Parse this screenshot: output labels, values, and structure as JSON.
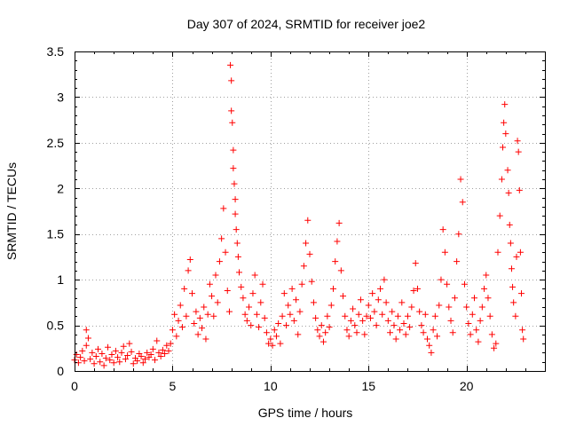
{
  "chart_data": {
    "type": "scatter",
    "title": "Day 307 of 2024, SRMTID for receiver joe2",
    "xlabel": "GPS time / hours",
    "ylabel": "SRMTID / TECUs",
    "xlim": [
      0,
      24
    ],
    "ylim": [
      0,
      3.5
    ],
    "xticks": [
      0,
      5,
      10,
      15,
      20
    ],
    "xtick_labels": [
      "0",
      "5",
      "10",
      "15",
      "20"
    ],
    "yticks": [
      0,
      0.5,
      1,
      1.5,
      2,
      2.5,
      3,
      3.5
    ],
    "ytick_labels": [
      "0",
      "0.5",
      "1",
      "1.5",
      "2",
      "2.5",
      "3",
      "3.5"
    ],
    "grid": true,
    "marker": "+",
    "color": "#ff0000",
    "series": [
      {
        "name": "SRMTID",
        "points": [
          [
            0.0,
            0.12
          ],
          [
            0.1,
            0.18
          ],
          [
            0.2,
            0.09
          ],
          [
            0.3,
            0.15
          ],
          [
            0.4,
            0.22
          ],
          [
            0.5,
            0.11
          ],
          [
            0.6,
            0.28
          ],
          [
            0.6,
            0.45
          ],
          [
            0.7,
            0.36
          ],
          [
            0.8,
            0.13
          ],
          [
            0.9,
            0.2
          ],
          [
            1.0,
            0.08
          ],
          [
            1.1,
            0.16
          ],
          [
            1.2,
            0.24
          ],
          [
            1.3,
            0.1
          ],
          [
            1.4,
            0.19
          ],
          [
            1.5,
            0.06
          ],
          [
            1.6,
            0.14
          ],
          [
            1.7,
            0.26
          ],
          [
            1.8,
            0.12
          ],
          [
            1.9,
            0.18
          ],
          [
            2.0,
            0.09
          ],
          [
            2.1,
            0.22
          ],
          [
            2.2,
            0.15
          ],
          [
            2.3,
            0.1
          ],
          [
            2.4,
            0.2
          ],
          [
            2.5,
            0.27
          ],
          [
            2.6,
            0.13
          ],
          [
            2.7,
            0.17
          ],
          [
            2.8,
            0.3
          ],
          [
            2.9,
            0.21
          ],
          [
            3.0,
            0.08
          ],
          [
            3.1,
            0.14
          ],
          [
            3.2,
            0.11
          ],
          [
            3.3,
            0.19
          ],
          [
            3.4,
            0.16
          ],
          [
            3.5,
            0.09
          ],
          [
            3.6,
            0.13
          ],
          [
            3.7,
            0.2
          ],
          [
            3.8,
            0.15
          ],
          [
            3.9,
            0.18
          ],
          [
            4.0,
            0.24
          ],
          [
            4.1,
            0.12
          ],
          [
            4.2,
            0.33
          ],
          [
            4.3,
            0.2
          ],
          [
            4.4,
            0.16
          ],
          [
            4.5,
            0.23
          ],
          [
            4.6,
            0.19
          ],
          [
            4.7,
            0.28
          ],
          [
            4.8,
            0.22
          ],
          [
            4.9,
            0.3
          ],
          [
            5.0,
            0.45
          ],
          [
            5.1,
            0.62
          ],
          [
            5.2,
            0.38
          ],
          [
            5.3,
            0.55
          ],
          [
            5.4,
            0.72
          ],
          [
            5.5,
            0.48
          ],
          [
            5.6,
            0.9
          ],
          [
            5.7,
            0.6
          ],
          [
            5.8,
            1.1
          ],
          [
            5.9,
            1.22
          ],
          [
            6.0,
            0.85
          ],
          [
            6.1,
            0.52
          ],
          [
            6.2,
            0.65
          ],
          [
            6.3,
            0.4
          ],
          [
            6.4,
            0.58
          ],
          [
            6.5,
            0.47
          ],
          [
            6.6,
            0.7
          ],
          [
            6.7,
            0.35
          ],
          [
            6.8,
            0.62
          ],
          [
            6.9,
            0.95
          ],
          [
            7.0,
            0.82
          ],
          [
            7.1,
            0.6
          ],
          [
            7.2,
            1.05
          ],
          [
            7.3,
            0.75
          ],
          [
            7.4,
            1.2
          ],
          [
            7.5,
            1.45
          ],
          [
            7.6,
            1.78
          ],
          [
            7.7,
            1.3
          ],
          [
            7.8,
            0.88
          ],
          [
            7.9,
            0.65
          ],
          [
            7.95,
            3.35
          ],
          [
            8.0,
            3.18
          ],
          [
            8.0,
            2.85
          ],
          [
            8.05,
            2.72
          ],
          [
            8.1,
            2.42
          ],
          [
            8.1,
            2.22
          ],
          [
            8.15,
            2.05
          ],
          [
            8.2,
            1.88
          ],
          [
            8.2,
            1.72
          ],
          [
            8.25,
            1.55
          ],
          [
            8.3,
            1.4
          ],
          [
            8.35,
            1.25
          ],
          [
            8.4,
            1.08
          ],
          [
            8.5,
            0.92
          ],
          [
            8.6,
            0.8
          ],
          [
            8.7,
            0.62
          ],
          [
            8.8,
            0.55
          ],
          [
            8.9,
            0.7
          ],
          [
            9.0,
            0.5
          ],
          [
            9.1,
            0.85
          ],
          [
            9.2,
            1.05
          ],
          [
            9.3,
            0.62
          ],
          [
            9.4,
            0.48
          ],
          [
            9.5,
            0.75
          ],
          [
            9.6,
            0.95
          ],
          [
            9.7,
            0.58
          ],
          [
            9.8,
            0.42
          ],
          [
            9.9,
            0.3
          ],
          [
            10.0,
            0.35
          ],
          [
            10.1,
            0.28
          ],
          [
            10.2,
            0.45
          ],
          [
            10.3,
            0.38
          ],
          [
            10.4,
            0.52
          ],
          [
            10.5,
            0.3
          ],
          [
            10.6,
            0.6
          ],
          [
            10.7,
            0.85
          ],
          [
            10.8,
            0.5
          ],
          [
            10.9,
            0.72
          ],
          [
            11.0,
            0.62
          ],
          [
            11.1,
            0.9
          ],
          [
            11.2,
            0.55
          ],
          [
            11.3,
            0.78
          ],
          [
            11.4,
            0.4
          ],
          [
            11.5,
            0.65
          ],
          [
            11.6,
            0.95
          ],
          [
            11.7,
            1.15
          ],
          [
            11.8,
            1.4
          ],
          [
            11.9,
            1.65
          ],
          [
            12.0,
            1.28
          ],
          [
            12.1,
            0.98
          ],
          [
            12.2,
            0.75
          ],
          [
            12.3,
            0.58
          ],
          [
            12.4,
            0.45
          ],
          [
            12.5,
            0.38
          ],
          [
            12.6,
            0.5
          ],
          [
            12.7,
            0.32
          ],
          [
            12.8,
            0.42
          ],
          [
            12.9,
            0.6
          ],
          [
            13.0,
            0.48
          ],
          [
            13.1,
            0.72
          ],
          [
            13.2,
            0.9
          ],
          [
            13.3,
            1.2
          ],
          [
            13.4,
            1.42
          ],
          [
            13.5,
            1.62
          ],
          [
            13.6,
            1.1
          ],
          [
            13.7,
            0.82
          ],
          [
            13.8,
            0.6
          ],
          [
            13.9,
            0.45
          ],
          [
            14.0,
            0.38
          ],
          [
            14.1,
            0.55
          ],
          [
            14.2,
            0.68
          ],
          [
            14.3,
            0.5
          ],
          [
            14.4,
            0.42
          ],
          [
            14.5,
            0.62
          ],
          [
            14.6,
            0.78
          ],
          [
            14.7,
            0.55
          ],
          [
            14.8,
            0.4
          ],
          [
            14.9,
            0.6
          ],
          [
            15.0,
            0.72
          ],
          [
            15.1,
            0.58
          ],
          [
            15.2,
            0.85
          ],
          [
            15.3,
            0.65
          ],
          [
            15.4,
            0.5
          ],
          [
            15.5,
            0.78
          ],
          [
            15.6,
            0.9
          ],
          [
            15.7,
            0.62
          ],
          [
            15.8,
            1.0
          ],
          [
            15.9,
            0.75
          ],
          [
            16.0,
            0.55
          ],
          [
            16.1,
            0.42
          ],
          [
            16.2,
            0.65
          ],
          [
            16.3,
            0.5
          ],
          [
            16.4,
            0.35
          ],
          [
            16.5,
            0.6
          ],
          [
            16.6,
            0.45
          ],
          [
            16.7,
            0.75
          ],
          [
            16.8,
            0.52
          ],
          [
            16.9,
            0.4
          ],
          [
            17.0,
            0.6
          ],
          [
            17.1,
            0.48
          ],
          [
            17.2,
            0.7
          ],
          [
            17.3,
            0.88
          ],
          [
            17.4,
            1.18
          ],
          [
            17.5,
            0.9
          ],
          [
            17.6,
            0.65
          ],
          [
            17.7,
            0.5
          ],
          [
            17.8,
            0.42
          ],
          [
            17.9,
            0.62
          ],
          [
            18.0,
            0.35
          ],
          [
            18.1,
            0.28
          ],
          [
            18.2,
            0.2
          ],
          [
            18.3,
            0.45
          ],
          [
            18.4,
            0.6
          ],
          [
            18.5,
            0.38
          ],
          [
            18.6,
            0.72
          ],
          [
            18.7,
            1.0
          ],
          [
            18.8,
            1.55
          ],
          [
            18.9,
            1.3
          ],
          [
            19.0,
            0.95
          ],
          [
            19.1,
            0.7
          ],
          [
            19.2,
            0.55
          ],
          [
            19.3,
            0.42
          ],
          [
            19.4,
            0.8
          ],
          [
            19.5,
            1.2
          ],
          [
            19.6,
            1.5
          ],
          [
            19.7,
            2.1
          ],
          [
            19.8,
            1.85
          ],
          [
            19.9,
            0.95
          ],
          [
            20.0,
            0.7
          ],
          [
            20.1,
            0.52
          ],
          [
            20.2,
            0.4
          ],
          [
            20.3,
            0.62
          ],
          [
            20.4,
            0.8
          ],
          [
            20.5,
            0.45
          ],
          [
            20.6,
            0.32
          ],
          [
            20.7,
            0.55
          ],
          [
            20.8,
            0.7
          ],
          [
            20.9,
            0.9
          ],
          [
            21.0,
            1.05
          ],
          [
            21.1,
            0.8
          ],
          [
            21.2,
            0.6
          ],
          [
            21.3,
            0.4
          ],
          [
            21.4,
            0.25
          ],
          [
            21.5,
            0.3
          ],
          [
            21.6,
            1.3
          ],
          [
            21.7,
            1.7
          ],
          [
            21.8,
            2.1
          ],
          [
            21.85,
            2.45
          ],
          [
            21.9,
            2.72
          ],
          [
            21.95,
            2.92
          ],
          [
            22.0,
            2.6
          ],
          [
            22.1,
            2.2
          ],
          [
            22.15,
            1.95
          ],
          [
            22.2,
            1.6
          ],
          [
            22.25,
            1.4
          ],
          [
            22.3,
            1.12
          ],
          [
            22.35,
            0.92
          ],
          [
            22.4,
            0.75
          ],
          [
            22.5,
            0.6
          ],
          [
            22.55,
            1.25
          ],
          [
            22.6,
            2.52
          ],
          [
            22.65,
            2.4
          ],
          [
            22.7,
            1.98
          ],
          [
            22.75,
            1.3
          ],
          [
            22.8,
            0.85
          ],
          [
            22.85,
            0.45
          ],
          [
            22.9,
            0.35
          ]
        ]
      }
    ]
  }
}
